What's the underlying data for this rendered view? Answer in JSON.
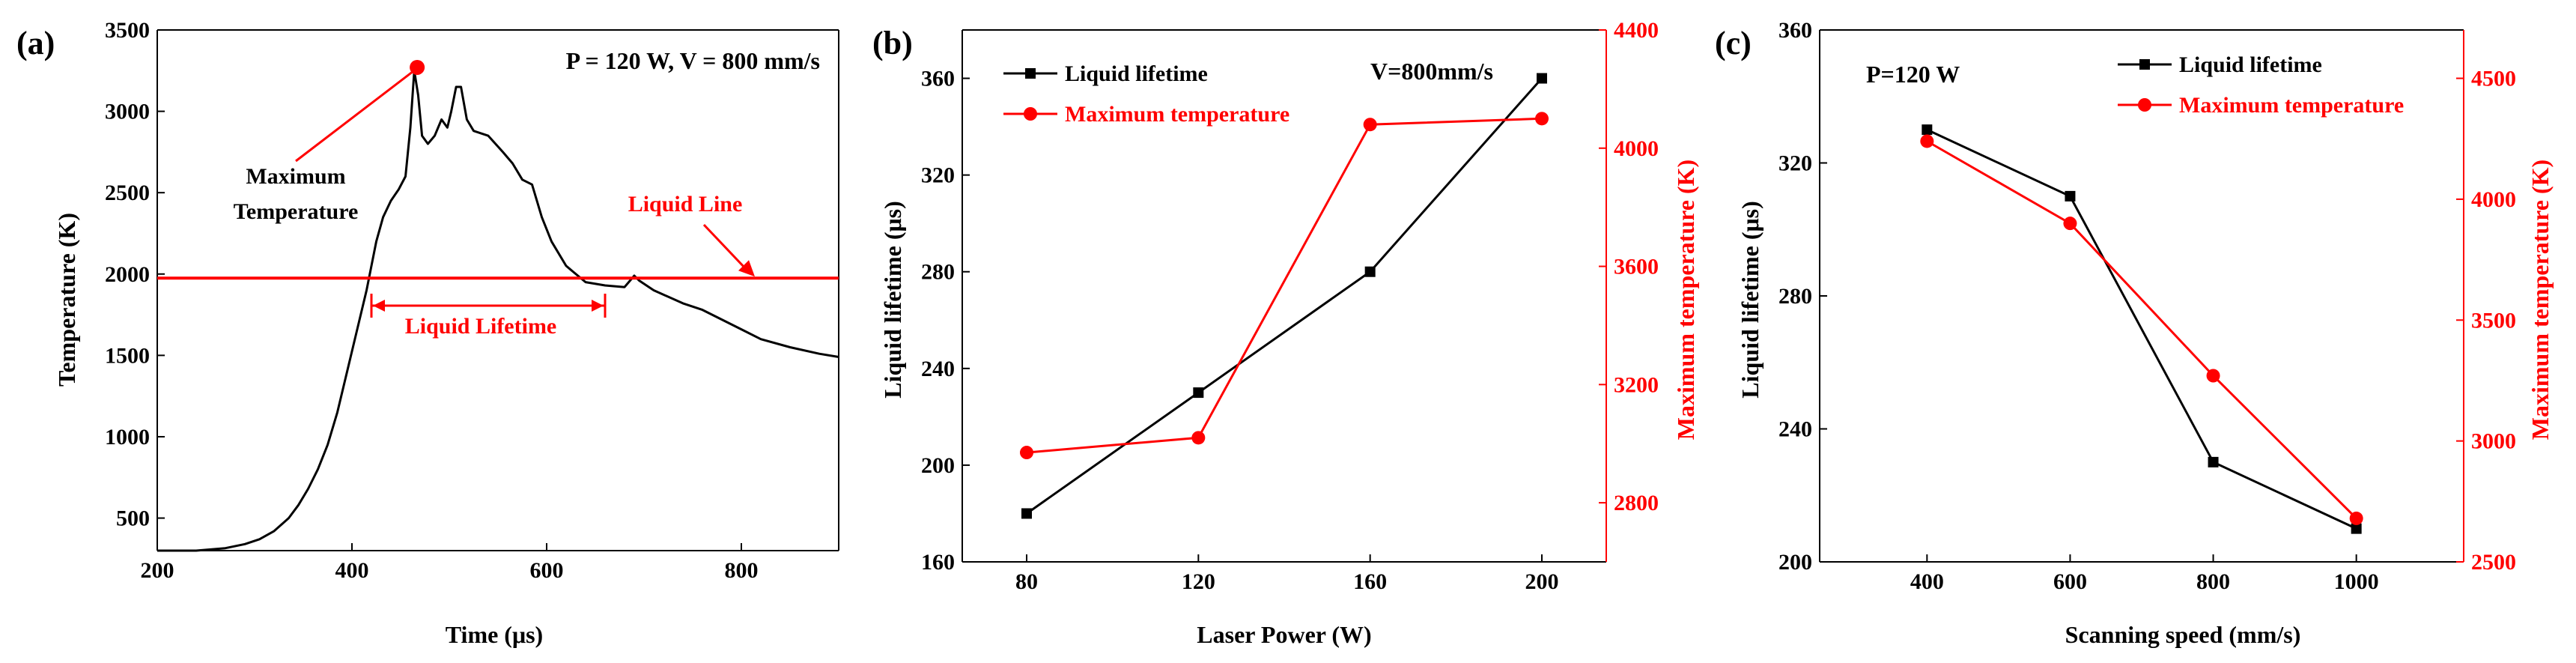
{
  "chart_data": [
    {
      "type": "line",
      "panel_label": "(a)",
      "title": "P = 120 W, V = 800 mm/s",
      "xlabel": "Time (μs)",
      "ylabel": "Temperature (K)",
      "xlim": [
        200,
        900
      ],
      "ylim": [
        300,
        3500
      ],
      "xticks": [
        "200",
        "400",
        "600",
        "800"
      ],
      "xtick_values": [
        200,
        400,
        600,
        800
      ],
      "yticks": [
        "500",
        "1000",
        "1500",
        "2000",
        "2500",
        "3000",
        "3500"
      ],
      "ytick_values": [
        500,
        1000,
        1500,
        2000,
        2500,
        3000,
        3500
      ],
      "series": [
        {
          "name": "Temperature",
          "color": "#000000",
          "x": [
            200,
            240,
            270,
            290,
            305,
            320,
            335,
            345,
            355,
            365,
            375,
            385,
            395,
            405,
            415,
            425,
            432,
            440,
            448,
            455,
            460,
            464,
            468,
            472,
            478,
            485,
            492,
            498,
            502,
            507,
            512,
            518,
            525,
            540,
            555,
            565,
            575,
            585,
            595,
            605,
            620,
            640,
            660,
            680,
            690,
            695,
            710,
            740,
            760,
            780,
            800,
            820,
            850,
            880,
            900
          ],
          "y": [
            300,
            300,
            315,
            340,
            370,
            420,
            500,
            580,
            680,
            800,
            950,
            1150,
            1400,
            1650,
            1900,
            2200,
            2350,
            2450,
            2520,
            2600,
            2900,
            3250,
            3100,
            2850,
            2800,
            2850,
            2950,
            2900,
            3000,
            3150,
            3150,
            2950,
            2880,
            2850,
            2750,
            2680,
            2580,
            2550,
            2350,
            2200,
            2050,
            1950,
            1930,
            1920,
            1990,
            1960,
            1900,
            1820,
            1780,
            1720,
            1660,
            1600,
            1550,
            1510,
            1490
          ]
        }
      ],
      "annotations": {
        "max_point": {
          "x": 467,
          "y": 3270,
          "color": "#ff0000"
        },
        "max_label_line1": "Maximum",
        "max_label_line2": "Temperature",
        "liquid_line_value": 1975,
        "liquid_line_label": "Liquid Line",
        "liquid_lifetime_label": "Liquid Lifetime",
        "lifetime_start": 420,
        "lifetime_end": 660,
        "accent_color": "#ff0000"
      }
    },
    {
      "type": "line",
      "panel_label": "(b)",
      "annotation": "V=800mm/s",
      "xlabel": "Laser Power (W)",
      "ylabel": "Liquid lifetime (μs)",
      "y2label": "Maximum temperature (K)",
      "categories": [
        "80",
        "120",
        "160",
        "200"
      ],
      "x": [
        80,
        120,
        160,
        200
      ],
      "xlim": [
        65,
        215
      ],
      "ylim": [
        160,
        380
      ],
      "y2lim": [
        2600,
        4400
      ],
      "yticks": [
        "160",
        "200",
        "240",
        "280",
        "320",
        "360"
      ],
      "ytick_values": [
        160,
        200,
        240,
        280,
        320,
        360
      ],
      "y2ticks": [
        "2800",
        "3200",
        "3600",
        "4000",
        "4400"
      ],
      "y2tick_values": [
        2800,
        3200,
        3600,
        4000,
        4400
      ],
      "series": [
        {
          "name": "Liquid lifetime",
          "axis": "left",
          "color": "#000000",
          "marker": "square",
          "values": [
            180,
            230,
            280,
            360
          ]
        },
        {
          "name": "Maximum temperature",
          "axis": "right",
          "color": "#ff0000",
          "marker": "circle",
          "values": [
            2970,
            3020,
            4080,
            4100
          ]
        }
      ],
      "legend": "top-left"
    },
    {
      "type": "line",
      "panel_label": "(c)",
      "annotation": "P=120 W",
      "xlabel": "Scanning speed (mm/s)",
      "ylabel": "Liquid lifetime (μs)",
      "y2label": "Maximum temperature (K)",
      "categories": [
        "400",
        "600",
        "800",
        "1000"
      ],
      "x": [
        400,
        600,
        800,
        1000
      ],
      "xlim": [
        250,
        1150
      ],
      "ylim": [
        200,
        360
      ],
      "y2lim": [
        2500,
        4700
      ],
      "yticks": [
        "200",
        "240",
        "280",
        "320",
        "360"
      ],
      "ytick_values": [
        200,
        240,
        280,
        320,
        360
      ],
      "y2ticks": [
        "2500",
        "3000",
        "3500",
        "4000",
        "4500"
      ],
      "y2tick_values": [
        2500,
        3000,
        3500,
        4000,
        4500
      ],
      "series": [
        {
          "name": "Liquid lifetime",
          "axis": "left",
          "color": "#000000",
          "marker": "square",
          "values": [
            330,
            310,
            230,
            210
          ]
        },
        {
          "name": "Maximum temperature",
          "axis": "right",
          "color": "#ff0000",
          "marker": "circle",
          "values": [
            4240,
            3900,
            3270,
            2680
          ]
        }
      ],
      "legend": "top-right"
    }
  ]
}
